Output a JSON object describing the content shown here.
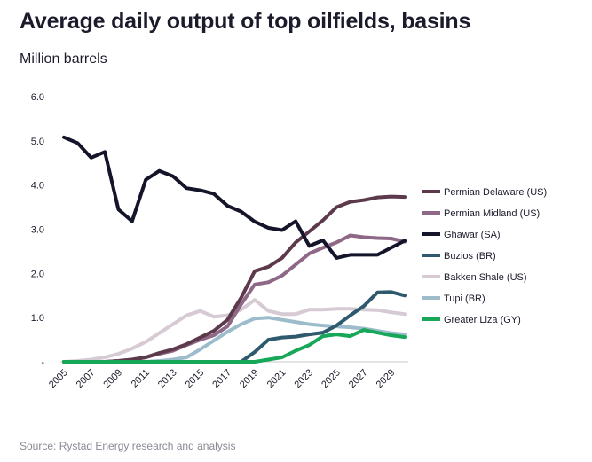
{
  "chart_data": {
    "type": "line",
    "title": "Average daily output of top oilfields, basins",
    "ylabel": "Million barrels",
    "xlabel": "",
    "source": "Source: Rystad Energy research and analysis",
    "ylim": [
      0,
      6
    ],
    "yticks": [
      0,
      1,
      2,
      3,
      4,
      5,
      6
    ],
    "yticklabels": [
      "-",
      "1.0",
      "2.0",
      "3.0",
      "4.0",
      "5.0",
      "6.0"
    ],
    "xlim": [
      2005,
      2030
    ],
    "xticks": [
      2005,
      2007,
      2009,
      2011,
      2013,
      2015,
      2017,
      2019,
      2021,
      2023,
      2025,
      2027,
      2029
    ],
    "x": [
      2005,
      2006,
      2007,
      2008,
      2009,
      2010,
      2011,
      2012,
      2013,
      2014,
      2015,
      2016,
      2017,
      2018,
      2019,
      2020,
      2021,
      2022,
      2023,
      2024,
      2025,
      2026,
      2027,
      2028,
      2029,
      2030
    ],
    "legend_position": "right",
    "series": [
      {
        "name": "Permian Delaware (US)",
        "color": "#5c3a4c",
        "values": [
          0.0,
          0.0,
          0.0,
          0.0,
          0.02,
          0.05,
          0.1,
          0.2,
          0.28,
          0.4,
          0.55,
          0.7,
          0.95,
          1.45,
          2.05,
          2.15,
          2.35,
          2.7,
          2.95,
          3.2,
          3.5,
          3.62,
          3.66,
          3.72,
          3.74,
          3.73
        ]
      },
      {
        "name": "Permian Midland (US)",
        "color": "#8e6886",
        "values": [
          0.0,
          0.0,
          0.0,
          0.0,
          0.02,
          0.05,
          0.1,
          0.18,
          0.25,
          0.38,
          0.5,
          0.6,
          0.8,
          1.3,
          1.75,
          1.8,
          1.95,
          2.2,
          2.45,
          2.58,
          2.7,
          2.86,
          2.82,
          2.8,
          2.79,
          2.72
        ]
      },
      {
        "name": "Ghawar (SA)",
        "color": "#14142a",
        "values": [
          5.08,
          4.95,
          4.62,
          4.75,
          3.45,
          3.18,
          4.12,
          4.32,
          4.2,
          3.93,
          3.88,
          3.8,
          3.53,
          3.4,
          3.17,
          3.03,
          2.98,
          3.18,
          2.62,
          2.75,
          2.35,
          2.42,
          2.42,
          2.42,
          2.58,
          2.74
        ]
      },
      {
        "name": "Buzios (BR)",
        "color": "#2f5a6e",
        "values": [
          0.0,
          0.0,
          0.0,
          0.0,
          0.0,
          0.0,
          0.0,
          0.0,
          0.0,
          0.0,
          0.0,
          0.0,
          0.0,
          0.0,
          0.22,
          0.5,
          0.55,
          0.57,
          0.62,
          0.66,
          0.82,
          1.05,
          1.26,
          1.57,
          1.58,
          1.5
        ]
      },
      {
        "name": "Bakken Shale (US)",
        "color": "#d6cad4",
        "values": [
          0.0,
          0.02,
          0.05,
          0.1,
          0.18,
          0.3,
          0.45,
          0.65,
          0.85,
          1.05,
          1.15,
          1.02,
          1.05,
          1.18,
          1.4,
          1.15,
          1.08,
          1.08,
          1.18,
          1.18,
          1.2,
          1.2,
          1.18,
          1.17,
          1.12,
          1.08
        ]
      },
      {
        "name": "Tupi (BR)",
        "color": "#9cbccc",
        "values": [
          0.0,
          0.0,
          0.0,
          0.0,
          0.0,
          0.0,
          0.0,
          0.02,
          0.05,
          0.1,
          0.28,
          0.48,
          0.68,
          0.85,
          0.98,
          1.0,
          0.95,
          0.9,
          0.85,
          0.82,
          0.8,
          0.78,
          0.75,
          0.7,
          0.65,
          0.62
        ]
      },
      {
        "name": "Greater Liza (GY)",
        "color": "#16a858",
        "values": [
          0.0,
          0.0,
          0.0,
          0.0,
          0.0,
          0.0,
          0.0,
          0.0,
          0.0,
          0.0,
          0.0,
          0.0,
          0.0,
          0.0,
          0.0,
          0.05,
          0.1,
          0.25,
          0.38,
          0.58,
          0.62,
          0.58,
          0.72,
          0.66,
          0.6,
          0.56
        ]
      }
    ]
  }
}
